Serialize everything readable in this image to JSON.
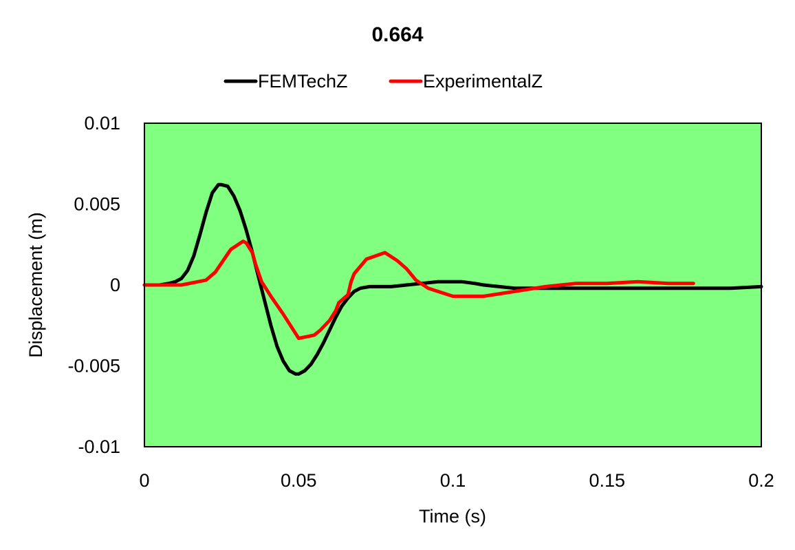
{
  "chart_data": {
    "type": "line",
    "title": "0.664",
    "xlabel": "Time (s)",
    "ylabel": "Displacement (m)",
    "xlim": [
      0,
      0.2
    ],
    "ylim": [
      -0.01,
      0.01
    ],
    "xticks": [
      0,
      0.05,
      0.1,
      0.15,
      0.2
    ],
    "xtick_labels": [
      "0",
      "0.05",
      "0.1",
      "0.15",
      "0.2"
    ],
    "yticks": [
      -0.01,
      -0.005,
      0,
      0.005,
      0.01
    ],
    "ytick_labels": [
      "-0.01",
      "-0.005",
      "0",
      "0.005",
      "0.01"
    ],
    "grid": false,
    "legend_position": "top",
    "plot_background": "#80ff80",
    "series": [
      {
        "name": "FEMTechZ",
        "color": "#000000",
        "x": [
          0,
          0.005,
          0.008,
          0.01,
          0.012,
          0.014,
          0.016,
          0.018,
          0.02,
          0.022,
          0.024,
          0.025,
          0.027,
          0.029,
          0.031,
          0.033,
          0.035,
          0.037,
          0.039,
          0.041,
          0.043,
          0.045,
          0.047,
          0.049,
          0.05,
          0.052,
          0.054,
          0.056,
          0.058,
          0.06,
          0.062,
          0.064,
          0.066,
          0.068,
          0.07,
          0.073,
          0.076,
          0.08,
          0.085,
          0.09,
          0.095,
          0.1,
          0.103,
          0.107,
          0.11,
          0.115,
          0.12,
          0.125,
          0.13,
          0.14,
          0.15,
          0.16,
          0.17,
          0.18,
          0.19,
          0.2
        ],
        "y": [
          0,
          0,
          0.0001,
          0.0002,
          0.0004,
          0.0009,
          0.0018,
          0.0031,
          0.0045,
          0.0057,
          0.0062,
          0.0062,
          0.0061,
          0.0055,
          0.0046,
          0.0034,
          0.002,
          0.0005,
          -0.001,
          -0.0025,
          -0.0038,
          -0.0047,
          -0.0053,
          -0.0055,
          -0.0055,
          -0.0053,
          -0.0049,
          -0.0043,
          -0.0036,
          -0.0028,
          -0.002,
          -0.0013,
          -0.0008,
          -0.0004,
          -0.0002,
          -0.0001,
          -0.0001,
          -0.0001,
          0,
          0.0001,
          0.0002,
          0.0002,
          0.0002,
          0.0001,
          0,
          -0.0001,
          -0.0002,
          -0.0002,
          -0.0002,
          -0.0002,
          -0.0002,
          -0.0002,
          -0.0002,
          -0.0002,
          -0.0002,
          -0.0001
        ]
      },
      {
        "name": "ExperimentalZ",
        "color": "#ff0000",
        "x": [
          0,
          0.012,
          0.02,
          0.023,
          0.028,
          0.032,
          0.033,
          0.035,
          0.036,
          0.038,
          0.041,
          0.045,
          0.05,
          0.055,
          0.057,
          0.06,
          0.062,
          0.063,
          0.066,
          0.067,
          0.068,
          0.072,
          0.078,
          0.082,
          0.085,
          0.088,
          0.092,
          0.1,
          0.11,
          0.12,
          0.13,
          0.14,
          0.15,
          0.16,
          0.17,
          0.178
        ],
        "y": [
          0,
          0,
          0.0003,
          0.0008,
          0.0022,
          0.0027,
          0.0026,
          0.002,
          0.0013,
          0.0002,
          -0.0007,
          -0.0018,
          -0.0033,
          -0.0031,
          -0.0028,
          -0.0022,
          -0.0016,
          -0.0011,
          -0.0006,
          0.0002,
          0.0007,
          0.0016,
          0.002,
          0.0015,
          0.001,
          0.0003,
          -0.0002,
          -0.0007,
          -0.0007,
          -0.0004,
          -0.0001,
          0.0001,
          0.0001,
          0.0002,
          0.0001,
          0.0001
        ]
      }
    ]
  }
}
